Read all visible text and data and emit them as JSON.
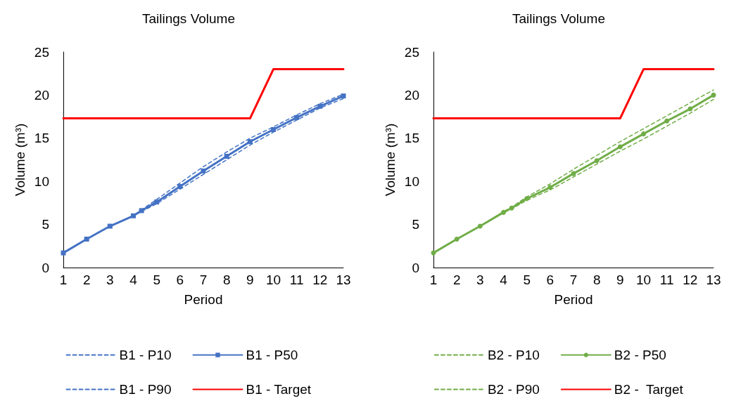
{
  "chart_data": [
    {
      "type": "line",
      "title": "Tailings Volume",
      "xlabel": "Period",
      "ylabel": "Volume (m³)",
      "xlim": [
        1,
        13
      ],
      "xticks": [
        1,
        2,
        3,
        4,
        5,
        6,
        7,
        8,
        9,
        10,
        11,
        12,
        13
      ],
      "ylim": [
        0,
        25
      ],
      "yticks": [
        0,
        5,
        10,
        15,
        20,
        25
      ],
      "grid": false,
      "legend": "bottom",
      "series": [
        {
          "name": "B1 - P10",
          "color": "#4472c4",
          "line_style": "dashed",
          "marker": "none",
          "x": [
            1,
            2,
            3,
            4,
            4.35,
            5,
            6,
            7,
            8,
            9,
            10,
            11,
            12,
            13
          ],
          "values": [
            1.7,
            3.3,
            4.8,
            6.0,
            6.7,
            7.9,
            9.8,
            11.7,
            13.4,
            15.0,
            16.3,
            17.7,
            19.0,
            20.1
          ]
        },
        {
          "name": "B1 - P50",
          "color": "#4472c4",
          "line_style": "solid",
          "marker": "square",
          "x": [
            1,
            2,
            3,
            4,
            4.35,
            5,
            6,
            7,
            8,
            9,
            10,
            11,
            12,
            13
          ],
          "values": [
            1.7,
            3.3,
            4.8,
            6.0,
            6.6,
            7.6,
            9.4,
            11.2,
            12.9,
            14.6,
            16.0,
            17.4,
            18.7,
            19.9
          ]
        },
        {
          "name": "B1 - P90",
          "color": "#4472c4",
          "line_style": "dashed",
          "marker": "none",
          "x": [
            1,
            2,
            3,
            4,
            4.35,
            5,
            6,
            7,
            8,
            9,
            10,
            11,
            12,
            13
          ],
          "values": [
            1.7,
            3.3,
            4.8,
            6.0,
            6.5,
            7.4,
            9.1,
            10.8,
            12.5,
            14.2,
            15.7,
            17.1,
            18.5,
            19.6
          ]
        },
        {
          "name": "B1 - Target",
          "color": "#ff0000",
          "line_style": "solid",
          "marker": "none",
          "x": [
            1,
            9,
            10,
            13
          ],
          "values": [
            17.3,
            17.3,
            23,
            23
          ]
        }
      ]
    },
    {
      "type": "line",
      "title": "Tailings Volume",
      "xlabel": "Period",
      "ylabel": "Volume (m³)",
      "xlim": [
        1,
        13
      ],
      "xticks": [
        1,
        2,
        3,
        4,
        5,
        6,
        7,
        8,
        9,
        10,
        11,
        12,
        13
      ],
      "ylim": [
        0,
        25
      ],
      "yticks": [
        0,
        5,
        10,
        15,
        20,
        25
      ],
      "grid": false,
      "legend": "bottom",
      "series": [
        {
          "name": "B2 - P10",
          "color": "#70ad47",
          "line_style": "dashed",
          "marker": "none",
          "x": [
            1,
            2,
            3,
            4,
            4.35,
            5,
            6,
            7,
            8,
            9,
            10,
            11,
            12,
            13
          ],
          "values": [
            1.7,
            3.3,
            4.8,
            6.5,
            7.0,
            8.2,
            9.7,
            11.4,
            13.0,
            14.6,
            16.1,
            17.6,
            19.1,
            20.6
          ]
        },
        {
          "name": "B2 - P50",
          "color": "#70ad47",
          "line_style": "solid",
          "marker": "circle",
          "x": [
            1,
            2,
            3,
            4,
            4.35,
            5,
            6,
            7,
            8,
            9,
            10,
            11,
            12,
            13
          ],
          "values": [
            1.7,
            3.3,
            4.8,
            6.4,
            6.9,
            8.0,
            9.3,
            10.9,
            12.4,
            14.0,
            15.5,
            17.0,
            18.4,
            20.0
          ]
        },
        {
          "name": "B2 - P90",
          "color": "#70ad47",
          "line_style": "dashed",
          "marker": "none",
          "x": [
            1,
            2,
            3,
            4,
            4.35,
            5,
            6,
            7,
            8,
            9,
            10,
            11,
            12,
            13
          ],
          "values": [
            1.7,
            3.3,
            4.8,
            6.4,
            6.8,
            7.8,
            9.0,
            10.5,
            12.0,
            13.5,
            14.9,
            16.4,
            17.9,
            19.5
          ]
        },
        {
          "name": "B2 -  Target",
          "color": "#ff0000",
          "line_style": "solid",
          "marker": "none",
          "x": [
            1,
            9,
            10,
            13
          ],
          "values": [
            17.3,
            17.3,
            23,
            23
          ]
        }
      ]
    }
  ]
}
